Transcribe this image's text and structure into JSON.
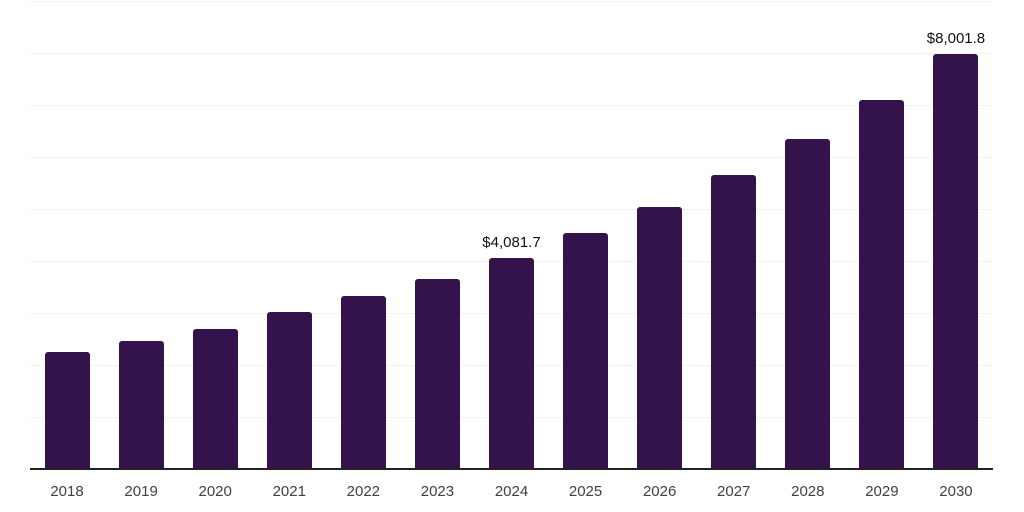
{
  "chart_data": {
    "type": "bar",
    "title": "",
    "xlabel": "",
    "ylabel": "",
    "categories": [
      "2018",
      "2019",
      "2020",
      "2021",
      "2022",
      "2023",
      "2024",
      "2025",
      "2026",
      "2027",
      "2028",
      "2029",
      "2030"
    ],
    "values": [
      2270,
      2480,
      2720,
      3030,
      3340,
      3680,
      4081.7,
      4560,
      5060,
      5680,
      6360,
      7120,
      8001.8
    ],
    "data_labels": [
      "",
      "",
      "",
      "",
      "",
      "",
      "$4,081.7",
      "",
      "",
      "",
      "",
      "",
      "$8,001.8"
    ],
    "ylim": [
      0,
      9000
    ],
    "gridline_step": 1000,
    "grid": true,
    "legend": "none",
    "colors": {
      "bar": "#34124C",
      "gridline": "#f2f2f2",
      "axis_line": "#222222",
      "value_label_text": "#111111",
      "x_tick_text": "#404040",
      "background": "#ffffff"
    }
  }
}
